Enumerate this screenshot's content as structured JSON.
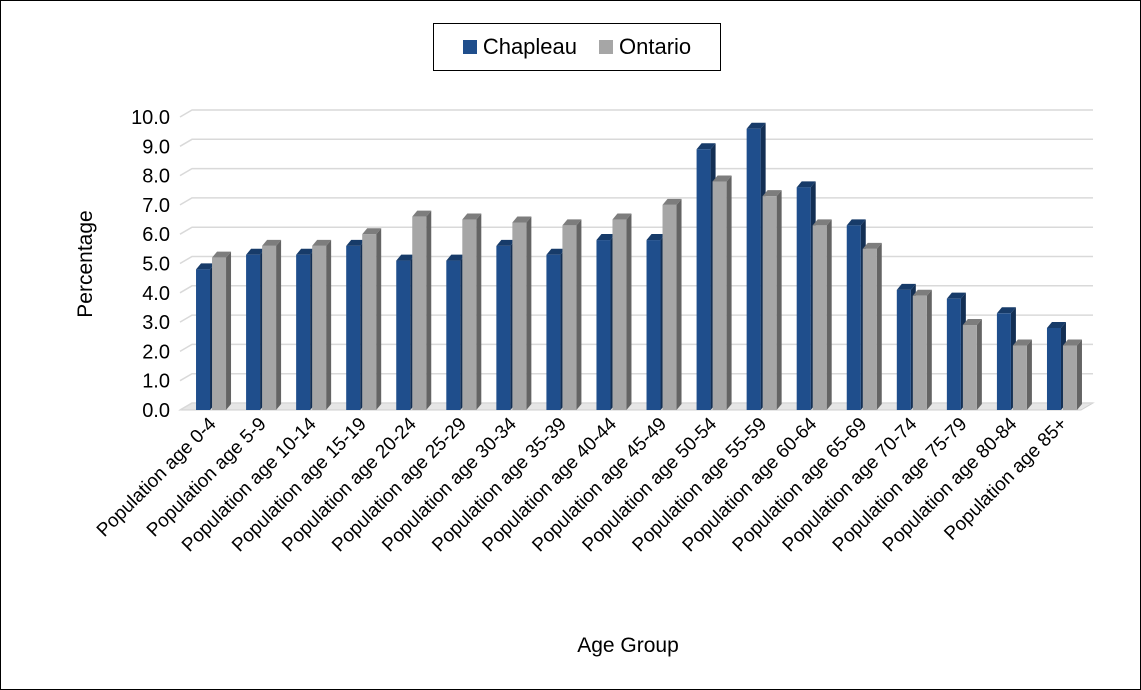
{
  "chart_data": {
    "type": "bar",
    "xlabel": "Age Group",
    "ylabel": "Percentage",
    "ylim": [
      0,
      10
    ],
    "yticks": [
      "0.0",
      "1.0",
      "2.0",
      "3.0",
      "4.0",
      "5.0",
      "6.0",
      "7.0",
      "8.0",
      "9.0",
      "10.0"
    ],
    "grid": true,
    "legend_position": "top-center",
    "categories": [
      "Population age 0-4",
      "Population age 5-9",
      "Population age 10-14",
      "Population age 15-19",
      "Population age 20-24",
      "Population age 25-29",
      "Population age 30-34",
      "Population age 35-39",
      "Population age 40-44",
      "Population age 45-49",
      "Population age 50-54",
      "Population age 55-59",
      "Population age 60-64",
      "Population age 65-69",
      "Population age 70-74",
      "Population age 75-79",
      "Population age 80-84",
      "Population age 85+"
    ],
    "series": [
      {
        "name": "Chapleau",
        "color": "#1f4e8c",
        "values": [
          4.8,
          5.3,
          5.3,
          5.6,
          5.1,
          5.1,
          5.6,
          5.3,
          5.8,
          5.8,
          8.9,
          9.6,
          7.6,
          6.3,
          4.1,
          3.8,
          3.3,
          2.8
        ]
      },
      {
        "name": "Ontario",
        "color": "#a6a6a6",
        "values": [
          5.2,
          5.6,
          5.6,
          6.0,
          6.6,
          6.5,
          6.4,
          6.3,
          6.5,
          7.0,
          7.8,
          7.3,
          6.3,
          5.5,
          3.9,
          2.9,
          2.2,
          2.2
        ]
      }
    ]
  }
}
